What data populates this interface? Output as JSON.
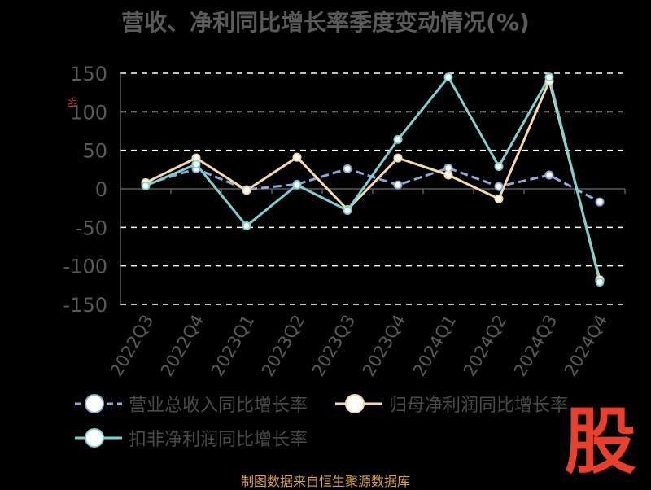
{
  "title": "营收、净利同比增长率季度变动情况(%)",
  "unit_label": "%",
  "source": "制图数据来自恒生聚源数据库",
  "logo_text": "股",
  "chart_data": {
    "type": "line",
    "title": "营收、净利同比增长率季度变动情况(%)",
    "categories": [
      "2022Q3",
      "2022Q4",
      "2023Q1",
      "2023Q2",
      "2023Q3",
      "2023Q4",
      "2024Q1",
      "2024Q2",
      "2024Q3",
      "2024Q4"
    ],
    "ylim": [
      -150,
      150
    ],
    "yticks": [
      150,
      100,
      50,
      0,
      -50,
      -100,
      -150
    ],
    "grid": true,
    "legend_position": "bottom",
    "series": [
      {
        "name": "营业总收入同比增长率",
        "color": "#8fa6d6",
        "dashed": true,
        "values": [
          6,
          26,
          -1,
          6,
          26,
          5,
          27,
          3,
          18,
          -17
        ]
      },
      {
        "name": "归母净利润同比增长率",
        "color": "#f7d9a8",
        "dashed": false,
        "values": [
          8,
          40,
          -2,
          41,
          -27,
          40,
          18,
          -13,
          140,
          -118
        ]
      },
      {
        "name": "扣非净利润同比增长率",
        "color": "#7ecfd0",
        "dashed": false,
        "values": [
          4,
          32,
          -48,
          5,
          -28,
          64,
          145,
          29,
          145,
          -121
        ]
      }
    ]
  }
}
